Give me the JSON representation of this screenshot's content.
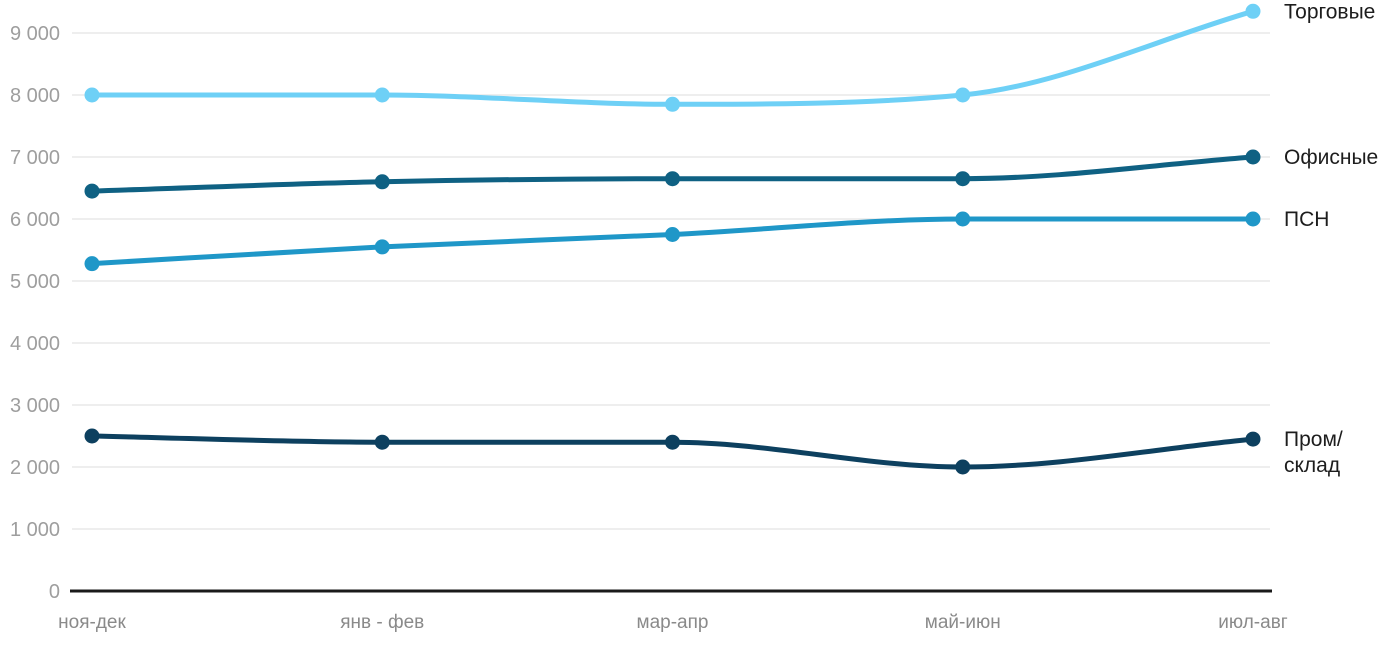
{
  "chart_data": {
    "type": "line",
    "title": "",
    "categories": [
      "ноя-дек",
      "янв - фев",
      "мар-апр",
      "май-июн",
      "июл-авг"
    ],
    "series": [
      {
        "name": "Торговые",
        "label_lines": [
          "Торговые"
        ],
        "color": "#6ed0f6",
        "values": [
          8000,
          8000,
          7850,
          8000,
          9350
        ]
      },
      {
        "name": "Офисные",
        "label_lines": [
          "Офисные"
        ],
        "color": "#0f6183",
        "values": [
          6450,
          6600,
          6650,
          6650,
          7000
        ]
      },
      {
        "name": "ПСН",
        "label_lines": [
          "ПСН"
        ],
        "color": "#1f97c8",
        "values": [
          5280,
          5550,
          5750,
          6000,
          6000
        ]
      },
      {
        "name": "Пром/склад",
        "label_lines": [
          "Пром/",
          "склад"
        ],
        "color": "#0d405f",
        "values": [
          2500,
          2400,
          2400,
          2000,
          2450
        ]
      }
    ],
    "y_axis": {
      "min": 0,
      "max": 9000,
      "tick_interval": 1000,
      "tick_labels": [
        "0",
        "1 000",
        "2 000",
        "3 000",
        "4 000",
        "5 000",
        "6 000",
        "7 000",
        "8 000",
        "9 000"
      ]
    },
    "x_axis": {
      "tick_labels": [
        "ноя-дек",
        "янв - фев",
        "мар-апр",
        "май-июн",
        "июл-авг"
      ]
    },
    "grid": true,
    "legend_position": "right-of-line-end",
    "colors": {
      "background": "#ffffff",
      "grid": "#e9e9e9",
      "axis": "#1a1a1a",
      "y_tick_text": "#9e9e9e",
      "x_tick_text": "#8a8a8a",
      "series_label_text": "#1d1d1d"
    }
  }
}
